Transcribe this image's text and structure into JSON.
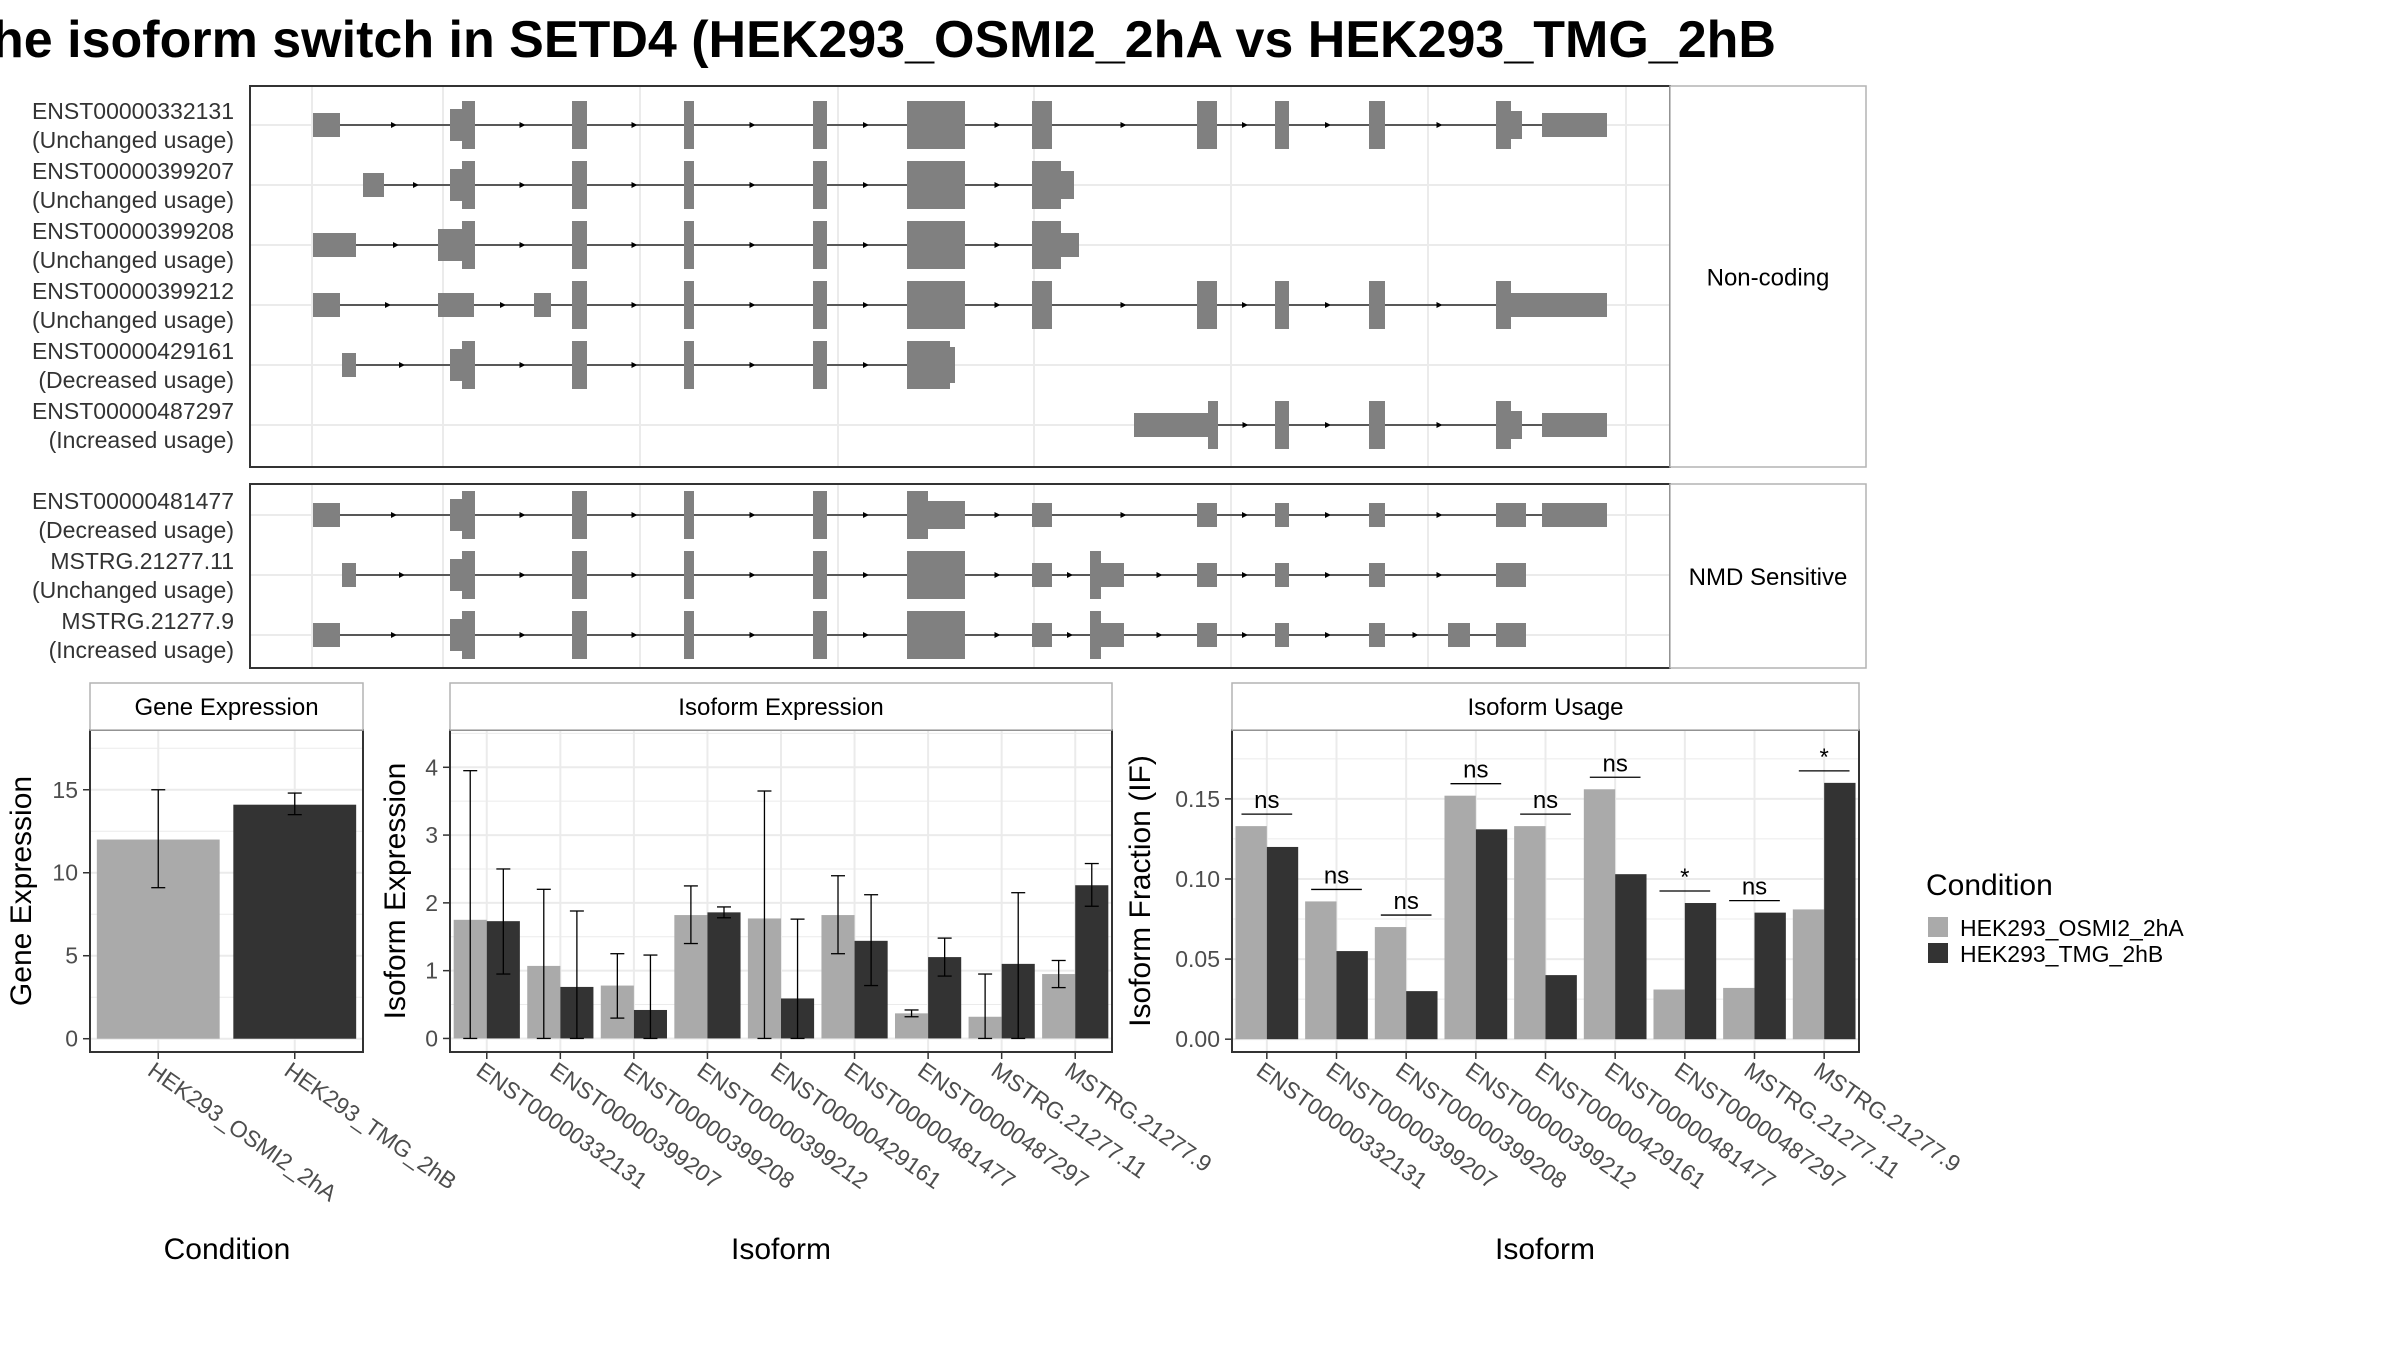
{
  "title": "he isoform switch in SETD4 (HEK293_OSMI2_2hA vs HEK293_TMG_2hB",
  "colors": {
    "exon": "#808080",
    "cond_a": "#aaaaaa",
    "cond_b": "#333333",
    "panel_border": "#333333",
    "strip_border": "#b3b3b3",
    "grid": "#ebebeb",
    "tick_text": "#4d4d4d"
  },
  "structure": {
    "groups": [
      {
        "label": "Non-coding",
        "transcripts": [
          {
            "id": "ENST00000332131",
            "usage": "(Unchanged usage)"
          },
          {
            "id": "ENST00000399207",
            "usage": "(Unchanged usage)"
          },
          {
            "id": "ENST00000399208",
            "usage": "(Unchanged usage)"
          },
          {
            "id": "ENST00000399212",
            "usage": "(Unchanged usage)"
          },
          {
            "id": "ENST00000429161",
            "usage": "(Decreased usage)"
          },
          {
            "id": "ENST00000487297",
            "usage": "(Increased usage)"
          }
        ]
      },
      {
        "label": "NMD Sensitive",
        "transcripts": [
          {
            "id": "ENST00000481477",
            "usage": "(Decreased usage)"
          },
          {
            "id": "MSTRG.21277.11",
            "usage": "(Unchanged usage)"
          },
          {
            "id": "MSTRG.21277.9",
            "usage": "(Increased usage)"
          }
        ]
      }
    ]
  },
  "chart_data": [
    {
      "type": "bar",
      "title": "Gene Expression",
      "xlabel": "Condition",
      "ylabel": "Gene Expression",
      "ylim": [
        -0.8,
        18.6
      ],
      "yticks": [
        0,
        5,
        10,
        15
      ],
      "ytick_labels": [
        "0",
        "5",
        "10",
        "15"
      ],
      "categories": [
        "HEK293_OSMI2_2hA",
        "HEK293_TMG_2hB"
      ],
      "values": [
        12.0,
        14.1
      ],
      "errors_low": [
        9.1,
        13.5
      ],
      "errors_high": [
        15.0,
        14.8
      ]
    },
    {
      "type": "bar",
      "title": "Isoform Expression",
      "xlabel": "Isoform",
      "ylabel": "Isoform Expression",
      "ylim": [
        -0.2,
        4.55
      ],
      "yticks": [
        0,
        1,
        2,
        3,
        4
      ],
      "ytick_labels": [
        "0",
        "1",
        "2",
        "3",
        "4"
      ],
      "categories": [
        "ENST00000332131",
        "ENST00000399207",
        "ENST00000399208",
        "ENST00000399212",
        "ENST00000429161",
        "ENST00000481477",
        "ENST00000487297",
        "MSTRG.21277.11",
        "MSTRG.21277.9"
      ],
      "series": [
        {
          "name": "HEK293_OSMI2_2hA",
          "values": [
            1.75,
            1.07,
            0.78,
            1.82,
            1.77,
            1.82,
            0.37,
            0.32,
            0.95
          ],
          "err_low": [
            0.0,
            0.0,
            0.3,
            1.4,
            0.0,
            1.25,
            0.32,
            0.0,
            0.75
          ],
          "err_high": [
            3.95,
            2.2,
            1.25,
            2.25,
            3.65,
            2.4,
            0.42,
            0.95,
            1.15
          ]
        },
        {
          "name": "HEK293_TMG_2hB",
          "values": [
            1.73,
            0.76,
            0.42,
            1.86,
            0.59,
            1.44,
            1.2,
            1.1,
            2.26
          ],
          "err_low": [
            0.95,
            0.0,
            0.0,
            1.78,
            0.0,
            0.78,
            0.92,
            0.0,
            1.95
          ],
          "err_high": [
            2.5,
            1.88,
            1.23,
            1.94,
            1.76,
            2.12,
            1.48,
            2.15,
            2.58
          ]
        }
      ]
    },
    {
      "type": "bar",
      "title": "Isoform Usage",
      "xlabel": "Isoform",
      "ylabel": "Isoform Fraction (IF)",
      "ylim": [
        -0.008,
        0.193
      ],
      "yticks": [
        0.0,
        0.05,
        0.1,
        0.15
      ],
      "ytick_labels": [
        "0.00",
        "0.05",
        "0.10",
        "0.15"
      ],
      "categories": [
        "ENST00000332131",
        "ENST00000399207",
        "ENST00000399208",
        "ENST00000399212",
        "ENST00000429161",
        "ENST00000481477",
        "ENST00000487297",
        "MSTRG.21277.11",
        "MSTRG.21277.9"
      ],
      "series": [
        {
          "name": "HEK293_OSMI2_2hA",
          "values": [
            0.133,
            0.086,
            0.07,
            0.152,
            0.133,
            0.156,
            0.031,
            0.032,
            0.081
          ]
        },
        {
          "name": "HEK293_TMG_2hB",
          "values": [
            0.12,
            0.055,
            0.03,
            0.131,
            0.04,
            0.103,
            0.085,
            0.079,
            0.16
          ]
        }
      ],
      "significance": [
        "ns",
        "ns",
        "ns",
        "ns",
        "ns",
        "ns",
        "*",
        "ns",
        "*"
      ]
    }
  ],
  "legend": {
    "title": "Condition",
    "items": [
      "HEK293_OSMI2_2hA",
      "HEK293_TMG_2hB"
    ]
  }
}
